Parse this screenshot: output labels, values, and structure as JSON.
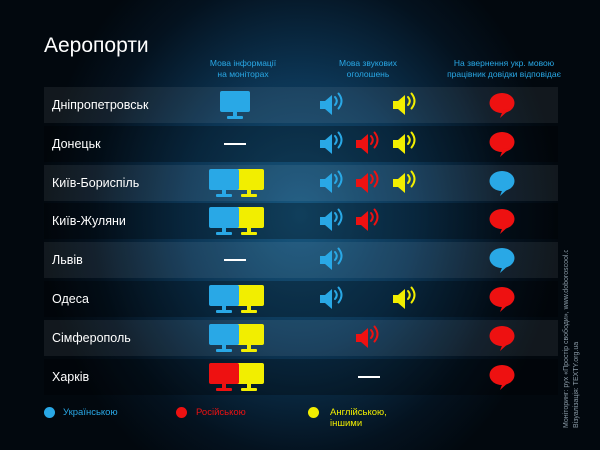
{
  "title": "Аеропорти",
  "columns": {
    "monitors": "Мова інформації\nна моніторах",
    "announcements": "Мова звукових\nоголошень",
    "help_desk": "На звернення укр. мовою\nпрацівник довідки відповідає"
  },
  "colors": {
    "uk": "#29a8e6",
    "ru": "#ee1111",
    "en": "#f2ee00",
    "neutral": "#ffffff"
  },
  "legend": [
    {
      "key": "uk",
      "label": "Українською"
    },
    {
      "key": "ru",
      "label": "Російською"
    },
    {
      "key": "en",
      "label": "Англійською, іншими"
    }
  ],
  "credits": {
    "line1": "Моніторинг:",
    "line1_value": "pyx «Простір свободи», www.doboroscool.org",
    "line2": "Візуалізація:",
    "line2_value": "TEXTY.org.ua"
  },
  "chart_data": {
    "type": "table",
    "title": "Аеропорти",
    "columns": [
      "Мова інформації на моніторах",
      "Мова звукових оголошень",
      "На звернення укр. мовою працівник довідки відповідає"
    ],
    "legend": {
      "uk": "Українською",
      "ru": "Російською",
      "en": "Англійською, іншими"
    },
    "rows": [
      {
        "airport": "Дніпропетровськ",
        "monitors": [
          "uk"
        ],
        "announcements": [
          "uk",
          "en"
        ],
        "help_desk": "ru"
      },
      {
        "airport": "Донецьк",
        "monitors": [],
        "announcements": [
          "uk",
          "ru",
          "en"
        ],
        "help_desk": "ru"
      },
      {
        "airport": "Київ-Бориспіль",
        "monitors": [
          "uk",
          "en"
        ],
        "announcements": [
          "uk",
          "ru",
          "en"
        ],
        "help_desk": "uk"
      },
      {
        "airport": "Київ-Жуляни",
        "monitors": [
          "uk",
          "en"
        ],
        "announcements": [
          "uk",
          "ru"
        ],
        "help_desk": "ru"
      },
      {
        "airport": "Львів",
        "monitors": [],
        "announcements": [
          "uk"
        ],
        "help_desk": "uk"
      },
      {
        "airport": "Одеса",
        "monitors": [
          "uk",
          "en"
        ],
        "announcements": [
          "uk",
          "en"
        ],
        "help_desk": "ru"
      },
      {
        "airport": "Сімферополь",
        "monitors": [
          "uk",
          "en"
        ],
        "announcements": [
          "ru"
        ],
        "help_desk": "ru"
      },
      {
        "airport": "Харків",
        "monitors": [
          "ru",
          "en"
        ],
        "announcements": [],
        "help_desk": "ru"
      }
    ]
  }
}
